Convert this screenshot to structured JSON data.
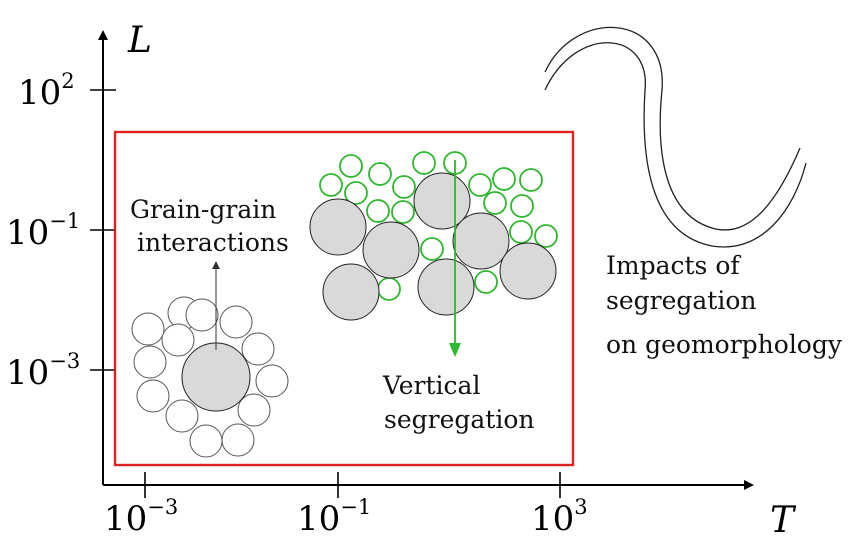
{
  "axes": {
    "x_label": "T",
    "y_label": "L",
    "x_ticks": [
      {
        "base": "10",
        "exp": "−3"
      },
      {
        "base": "10",
        "exp": "−1"
      },
      {
        "base": "10",
        "exp": "3"
      }
    ],
    "y_ticks": [
      {
        "base": "10",
        "exp": "2"
      },
      {
        "base": "10",
        "exp": "−1"
      },
      {
        "base": "10",
        "exp": "−3"
      }
    ]
  },
  "colors": {
    "box": "#e02020",
    "green": "#2db82d",
    "grain_fill": "#d9d9d9"
  },
  "labels": {
    "grain_line1": "Grain-grain",
    "grain_line2": "interactions",
    "vertical_line1": "Vertical",
    "vertical_line2": "segregation",
    "impacts_line1": "Impacts of",
    "impacts_line2": "segregation",
    "impacts_line3": "on geomorphology"
  }
}
